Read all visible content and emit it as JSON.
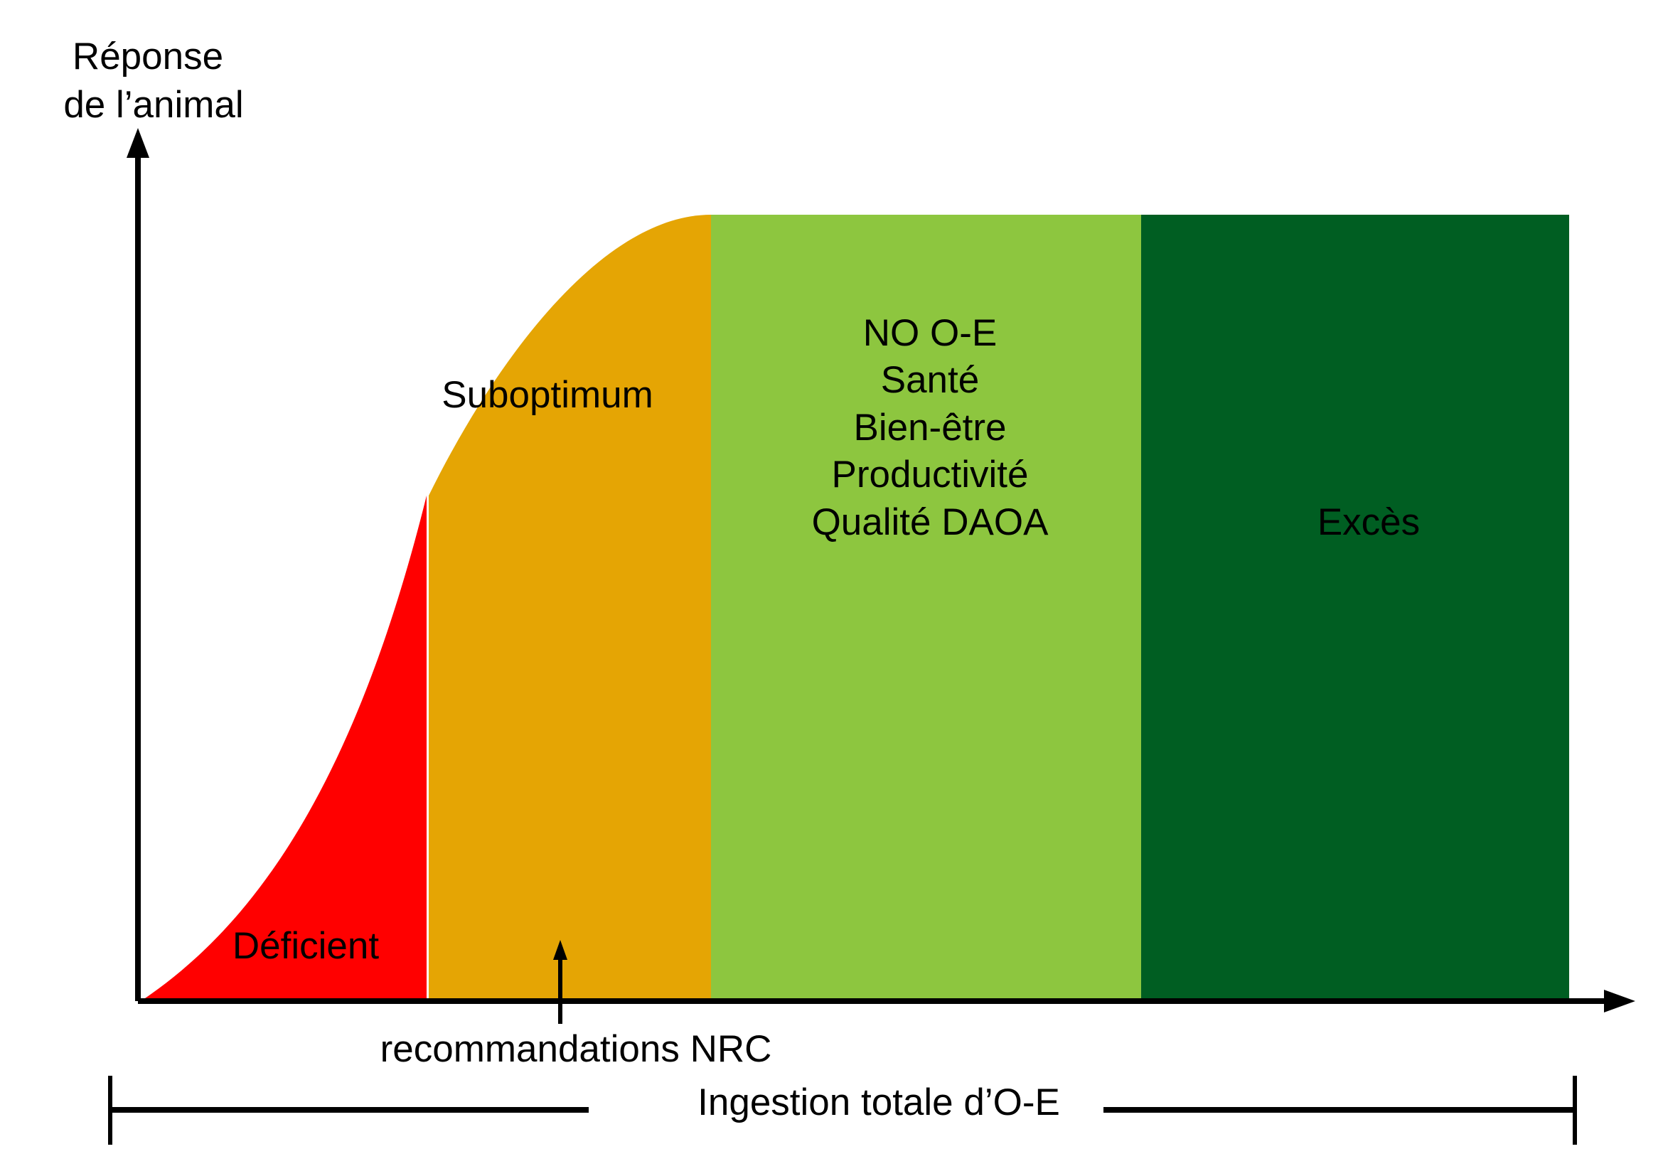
{
  "y_axis": {
    "label_line1": "Réponse",
    "label_line2": "de l’animal"
  },
  "x_axis": {
    "label": "Ingestion totale d’O-E"
  },
  "zones": {
    "deficient": {
      "label": "Déficient",
      "color": "#ff0000"
    },
    "suboptimum": {
      "label": "Suboptimum",
      "color": "#e5a504"
    },
    "optimum": {
      "color": "#8dc63f",
      "lines": [
        "NO O-E",
        "Santé",
        "Bien-être",
        "Productivité",
        "Qualité DAOA"
      ]
    },
    "excess": {
      "label": "Excès",
      "color": "#005e22"
    }
  },
  "marker": {
    "label": "recommandations NRC"
  }
}
